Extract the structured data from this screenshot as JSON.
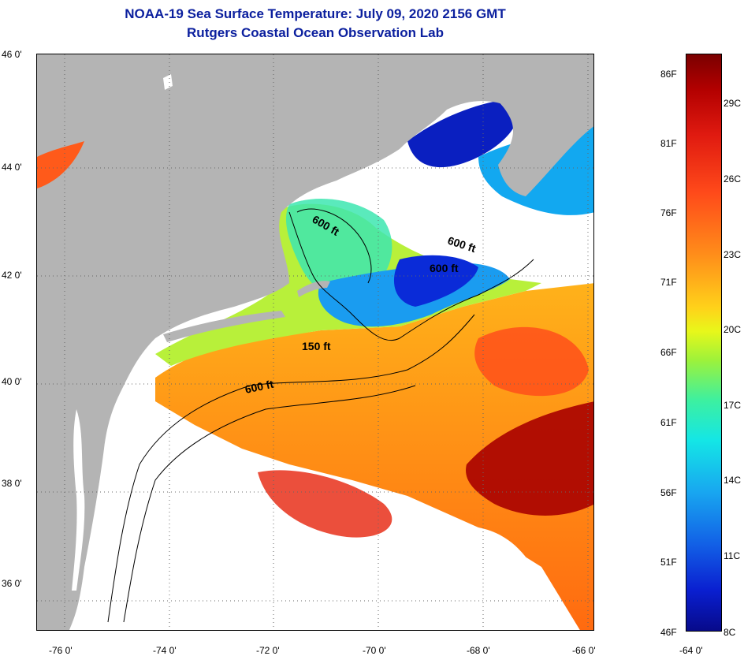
{
  "header": {
    "title": "NOAA-19 Sea Surface Temperature:  July 09, 2020 2156 GMT",
    "subtitle": "Rutgers Coastal Ocean Observation Lab"
  },
  "map": {
    "lat_labels": [
      "46 0'",
      "44 0'",
      "42 0'",
      "40 0'",
      "38 0'",
      "36 0'"
    ],
    "lon_labels": [
      "-76 0'",
      "-74 0'",
      "-72 0'",
      "-70 0'",
      "-68 0'",
      "-66 0'",
      "-64 0'"
    ],
    "contour_labels": [
      "600 ft",
      "600 ft",
      "600 ft",
      "150 ft",
      "600 ft"
    ],
    "colors": {
      "land": "#b4b4b4",
      "cloud": "#ffffff",
      "gulf_stream": "#b00000",
      "warm": "#ff7a1a",
      "mid": "#9ef03a",
      "cool": "#1aa0f0",
      "cold": "#0a1fd0"
    }
  },
  "colorbar": {
    "fahrenheit": [
      "86F",
      "81F",
      "76F",
      "71F",
      "66F",
      "61F",
      "56F",
      "51F",
      "46F"
    ],
    "celsius": [
      "29C",
      "26C",
      "23C",
      "20C",
      "17C",
      "14C",
      "11C",
      "8C"
    ],
    "range_f": [
      46,
      86
    ],
    "range_c": [
      8,
      29
    ]
  }
}
